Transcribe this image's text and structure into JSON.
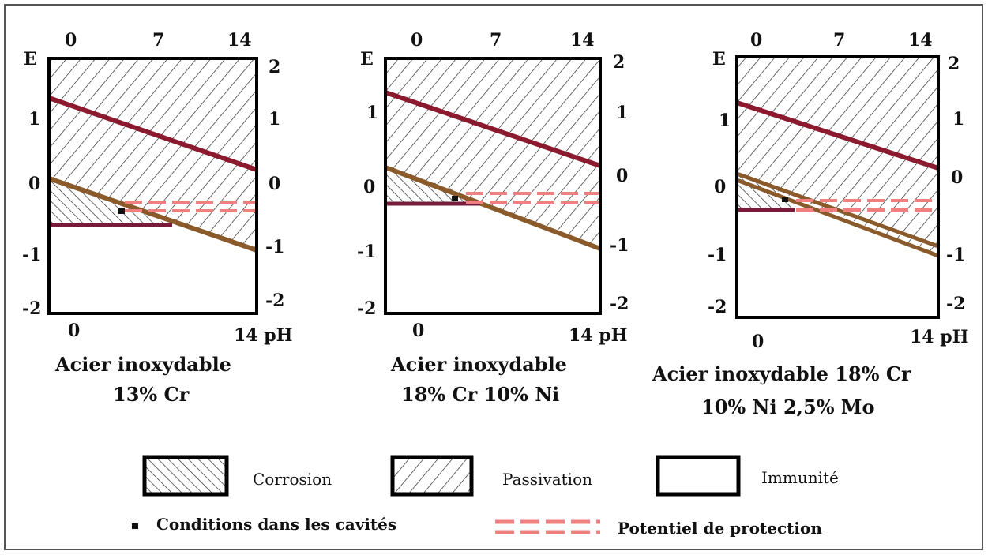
{
  "colors": {
    "frame": "#000000",
    "hatch": "#1a1a1a",
    "upper_line": "#8b1a2e",
    "lower_line": "#8b5a2b",
    "immunity_line": "#7a1a3a",
    "protection": "#f08080"
  },
  "diagrams": [
    {
      "e_label": "E",
      "ph_top_ticks": [
        "0",
        "7",
        "14"
      ],
      "e_left_ticks": [
        "1",
        "0",
        "-1",
        "-2"
      ],
      "e_right_ticks": [
        "2",
        "1",
        "0",
        "-1",
        "-2"
      ],
      "ph_bottom_ticks": [
        "0",
        "14 pH"
      ],
      "caption_lines": [
        "Acier inoxydable",
        "13% Cr"
      ]
    },
    {
      "e_label": "E",
      "ph_top_ticks": [
        "0",
        "7",
        "14"
      ],
      "e_left_ticks": [
        "1",
        "0",
        "-1",
        "-2"
      ],
      "e_right_ticks": [
        "2",
        "1",
        "0",
        "-1",
        "-2"
      ],
      "ph_bottom_ticks": [
        "0",
        "14 pH"
      ],
      "caption_lines": [
        "Acier inoxydable",
        "18% Cr 10% Ni"
      ]
    },
    {
      "e_label": "E",
      "ph_top_ticks": [
        "0",
        "7",
        "14"
      ],
      "e_left_ticks": [
        "1",
        "0",
        "-1",
        "-2"
      ],
      "e_right_ticks": [
        "2",
        "1",
        "0",
        "-1",
        "-2"
      ],
      "ph_bottom_ticks": [
        "0",
        "14 pH"
      ],
      "caption_lines": [
        "Acier inoxydable  18% Cr",
        "10% Ni  2,5% Mo"
      ]
    }
  ],
  "legend": {
    "corrosion": "Corrosion",
    "passivation": "Passivation",
    "immunite": "Immunité",
    "cavites": "Conditions dans les cavités",
    "protection": "Potentiel de protection"
  }
}
